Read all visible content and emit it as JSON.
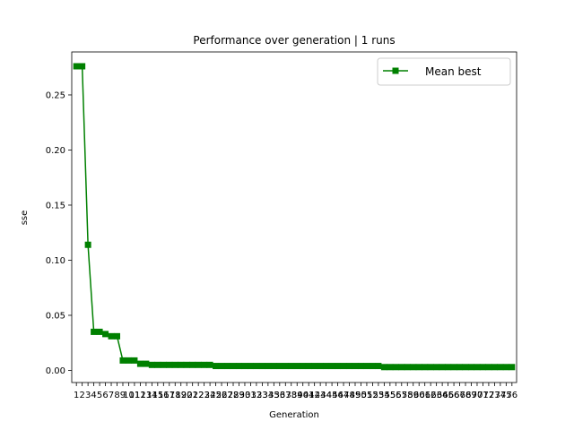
{
  "chart_data": {
    "type": "line",
    "title": "Performance over generation | 1 runs",
    "xlabel": "Generation",
    "ylabel": "sse",
    "ylim": [
      -0.011,
      0.289
    ],
    "yticks": [
      0.0,
      0.05,
      0.1,
      0.15,
      0.2,
      0.25
    ],
    "ytick_labels": [
      "0.00",
      "0.05",
      "0.10",
      "0.15",
      "0.20",
      "0.25"
    ],
    "xlim": [
      0.2,
      76.8
    ],
    "legend_position": "top-right",
    "grid": false,
    "series": [
      {
        "name": "Mean best",
        "color": "#008000",
        "marker": "square",
        "x": [
          1,
          2,
          3,
          4,
          5,
          6,
          7,
          8,
          9,
          10,
          11,
          12,
          13,
          14,
          15,
          16,
          17,
          18,
          19,
          20,
          21,
          22,
          23,
          24,
          25,
          26,
          27,
          28,
          29,
          30,
          31,
          32,
          33,
          34,
          35,
          36,
          37,
          38,
          39,
          40,
          41,
          42,
          43,
          44,
          45,
          46,
          47,
          48,
          49,
          50,
          51,
          52,
          53,
          54,
          55,
          56,
          57,
          58,
          59,
          60,
          61,
          62,
          63,
          64,
          65,
          66,
          67,
          68,
          69,
          70,
          71,
          72,
          73,
          74,
          75,
          76
        ],
        "values": [
          0.276,
          0.276,
          0.114,
          0.035,
          0.035,
          0.033,
          0.031,
          0.031,
          0.009,
          0.009,
          0.009,
          0.006,
          0.006,
          0.005,
          0.005,
          0.005,
          0.005,
          0.005,
          0.005,
          0.005,
          0.005,
          0.005,
          0.005,
          0.005,
          0.004,
          0.004,
          0.004,
          0.004,
          0.004,
          0.004,
          0.004,
          0.004,
          0.004,
          0.004,
          0.004,
          0.004,
          0.004,
          0.004,
          0.004,
          0.004,
          0.004,
          0.004,
          0.004,
          0.004,
          0.004,
          0.004,
          0.004,
          0.004,
          0.004,
          0.004,
          0.004,
          0.004,
          0.004,
          0.003,
          0.003,
          0.003,
          0.003,
          0.003,
          0.003,
          0.003,
          0.003,
          0.003,
          0.003,
          0.003,
          0.003,
          0.003,
          0.003,
          0.003,
          0.003,
          0.003,
          0.003,
          0.003,
          0.003,
          0.003,
          0.003,
          0.003
        ]
      }
    ]
  }
}
